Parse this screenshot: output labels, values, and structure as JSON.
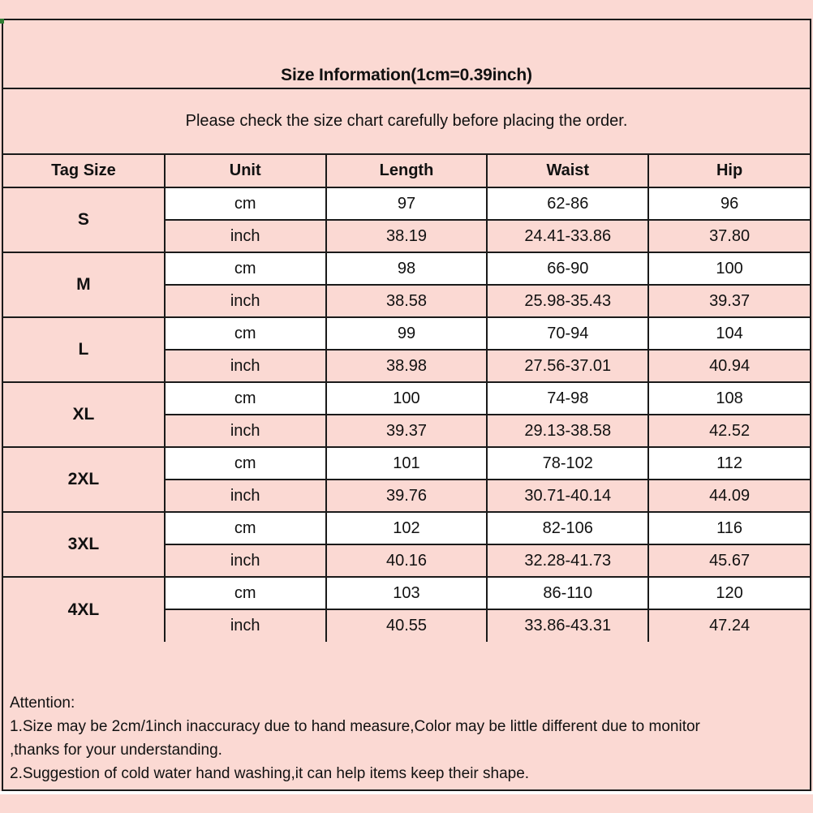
{
  "title": "Size Information(1cm=0.39inch)",
  "subtitle": "Please check the size chart carefully before placing the order.",
  "table": {
    "headers": [
      "Tag Size",
      "Unit",
      "Length",
      "Waist",
      "Hip"
    ],
    "units": {
      "cm": "cm",
      "inch": "inch"
    },
    "sizes": [
      {
        "label": "S",
        "cm": [
          "97",
          "62-86",
          "96"
        ],
        "inch": [
          "38.19",
          "24.41-33.86",
          "37.80"
        ]
      },
      {
        "label": "M",
        "cm": [
          "98",
          "66-90",
          "100"
        ],
        "inch": [
          "38.58",
          "25.98-35.43",
          "39.37"
        ]
      },
      {
        "label": "L",
        "cm": [
          "99",
          "70-94",
          "104"
        ],
        "inch": [
          "38.98",
          "27.56-37.01",
          "40.94"
        ]
      },
      {
        "label": "XL",
        "cm": [
          "100",
          "74-98",
          "108"
        ],
        "inch": [
          "39.37",
          "29.13-38.58",
          "42.52"
        ]
      },
      {
        "label": "2XL",
        "cm": [
          "101",
          "78-102",
          "112"
        ],
        "inch": [
          "39.76",
          "30.71-40.14",
          "44.09"
        ]
      },
      {
        "label": "3XL",
        "cm": [
          "102",
          "82-106",
          "116"
        ],
        "inch": [
          "40.16",
          "32.28-41.73",
          "45.67"
        ]
      },
      {
        "label": "4XL",
        "cm": [
          "103",
          "86-110",
          "120"
        ],
        "inch": [
          "40.55",
          "33.86-43.31",
          "47.24"
        ]
      }
    ]
  },
  "attention": {
    "heading": "Attention:",
    "lines": [
      "1.Size may be 2cm/1inch inaccuracy due to hand measure,Color may be little different due to monitor",
      ",thanks for your understanding.",
      "2.Suggestion of cold water hand washing,it can help items keep their shape."
    ]
  },
  "colors": {
    "background": "#fbd9d3",
    "cell_white": "#ffffff",
    "border": "#1a1a1a",
    "text": "#111111",
    "corner_artifact_green": "#2e7d32"
  }
}
